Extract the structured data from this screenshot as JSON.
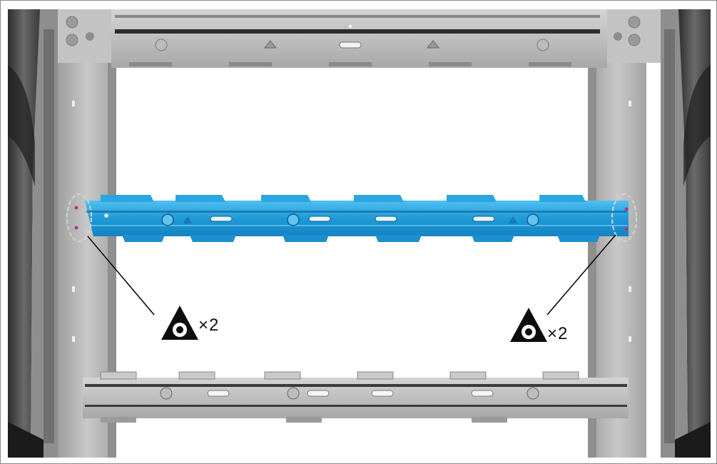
{
  "callouts": {
    "left": {
      "label": "×2",
      "icon": "weld-point-triangle-icon"
    },
    "right": {
      "label": "×2",
      "icon": "weld-point-triangle-icon"
    }
  },
  "colors": {
    "highlight_part": "#29a3e0",
    "frame_metal": "#bdbdbd",
    "dark_metal": "#3c3c3c",
    "weld_marker": "#b5318a"
  }
}
